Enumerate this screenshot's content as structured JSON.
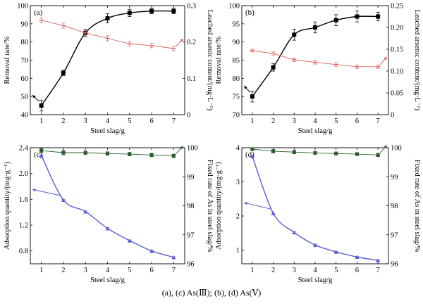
{
  "caption": "(a), (c) As(Ⅲ); (b), (d) As(Ⅴ)",
  "colors": {
    "removal": "#000000",
    "leached": "#e06060",
    "adsorption": "#5a5ad8",
    "fixed": "#2e5e2e"
  },
  "chart_data": [
    {
      "type": "line",
      "panel_label": "(a)",
      "xlabel": "Steel slag/g",
      "ylabel": "Removal rate/%",
      "y2label": "Leached arsenic content/(mg·L⁻¹)",
      "x": [
        1,
        2,
        3,
        4,
        5,
        6,
        7
      ],
      "xlim": [
        0.5,
        7.5
      ],
      "ylim": [
        40,
        100
      ],
      "y2lim": [
        0,
        0.3
      ],
      "xticks": [
        "1",
        "2",
        "3",
        "4",
        "5",
        "6",
        "7"
      ],
      "yticks": [
        "40",
        "50",
        "60",
        "70",
        "80",
        "90",
        "100"
      ],
      "y2ticks": [
        "0",
        "0.1",
        "0.2",
        "0.3"
      ],
      "series": [
        {
          "axis": "left",
          "values": [
            45,
            63,
            85,
            93,
            96,
            97,
            97
          ],
          "err": [
            3,
            1.5,
            2,
            2.5,
            2,
            1.5,
            1.5
          ]
        },
        {
          "axis": "right",
          "values": [
            0.26,
            0.245,
            0.225,
            0.21,
            0.195,
            0.19,
            0.182
          ],
          "err": [
            0.007,
            0.007,
            0.006,
            0.007,
            0.006,
            0.006,
            0.006
          ]
        }
      ]
    },
    {
      "type": "line",
      "panel_label": "(b)",
      "xlabel": "Steel slag/g",
      "ylabel": "Removal rate/%",
      "y2label": "Leached arsenic content/(mg·L⁻¹)",
      "x": [
        1,
        2,
        3,
        4,
        5,
        6,
        7
      ],
      "xlim": [
        0.5,
        7.5
      ],
      "ylim": [
        70,
        100
      ],
      "y2lim": [
        0,
        0.25
      ],
      "xticks": [
        "1",
        "2",
        "3",
        "4",
        "5",
        "6",
        "7"
      ],
      "yticks": [
        "70",
        "75",
        "80",
        "85",
        "90",
        "95",
        "100"
      ],
      "y2ticks": [
        "0",
        "0.05",
        "0.10",
        "0.15",
        "0.20",
        "0.25"
      ],
      "series": [
        {
          "axis": "left",
          "values": [
            75,
            83,
            92,
            94,
            96,
            97,
            97
          ],
          "err": [
            1.5,
            1,
            1.5,
            1.5,
            1.5,
            1.5,
            1.2
          ]
        },
        {
          "axis": "right",
          "values": [
            0.147,
            0.14,
            0.126,
            0.12,
            0.115,
            0.11,
            0.11
          ],
          "err": [
            0.003,
            0.004,
            0.004,
            0.004,
            0.004,
            0.004,
            0.004
          ]
        }
      ]
    },
    {
      "type": "line",
      "panel_label": "(c)",
      "xlabel": "Steel slag/g",
      "ylabel": "Adsorption quantity/(mg·g⁻¹)",
      "y2label": "Fixed rate of As in steel slag/%",
      "x": [
        1,
        2,
        3,
        4,
        5,
        6,
        7
      ],
      "xlim": [
        0.5,
        7.5
      ],
      "ylim": [
        0.6,
        2.4
      ],
      "y2lim": [
        96,
        100
      ],
      "xticks": [
        "1",
        "2",
        "3",
        "4",
        "5",
        "6",
        "7"
      ],
      "yticks": [
        "0.8",
        "1.2",
        "1.6",
        "2.0",
        "2.4"
      ],
      "y2ticks": [
        "96",
        "97",
        "98",
        "99",
        "100"
      ],
      "series": [
        {
          "axis": "left",
          "values": [
            2.28,
            1.59,
            1.41,
            1.15,
            0.96,
            0.8,
            0.7
          ],
          "err": [
            0.01,
            0.01,
            0.01,
            0.01,
            0.01,
            0.01,
            0.01
          ]
        },
        {
          "axis": "right",
          "values": [
            99.9,
            99.83,
            99.83,
            99.8,
            99.78,
            99.75,
            99.72
          ],
          "err": [
            0.07,
            0.08,
            0.06,
            0.06,
            0.06,
            0.06,
            0.06
          ]
        }
      ]
    },
    {
      "type": "line",
      "panel_label": "(d)",
      "xlabel": "Steel slag/g",
      "ylabel": "Adsorption quantity/(mg·g⁻¹)",
      "y2label": "Fixed rate of As in steel slag/%",
      "x": [
        1,
        2,
        3,
        4,
        5,
        6,
        7
      ],
      "xlim": [
        0.5,
        7.5
      ],
      "ylim": [
        0.6,
        4.0
      ],
      "y2lim": [
        96,
        100
      ],
      "xticks": [
        "1",
        "2",
        "3",
        "4",
        "5",
        "6",
        "7"
      ],
      "yticks": [
        "1",
        "2",
        "3",
        "4"
      ],
      "y2ticks": [
        "96",
        "97",
        "98",
        "99",
        "100"
      ],
      "series": [
        {
          "axis": "left",
          "values": [
            3.75,
            2.08,
            1.52,
            1.15,
            0.95,
            0.8,
            0.7
          ],
          "err": [
            0.02,
            0.02,
            0.02,
            0.02,
            0.02,
            0.02,
            0.02
          ]
        },
        {
          "axis": "right",
          "values": [
            99.95,
            99.88,
            99.85,
            99.82,
            99.8,
            99.78,
            99.75
          ],
          "err": [
            0.05,
            0.06,
            0.06,
            0.05,
            0.05,
            0.05,
            0.06
          ]
        }
      ]
    }
  ]
}
